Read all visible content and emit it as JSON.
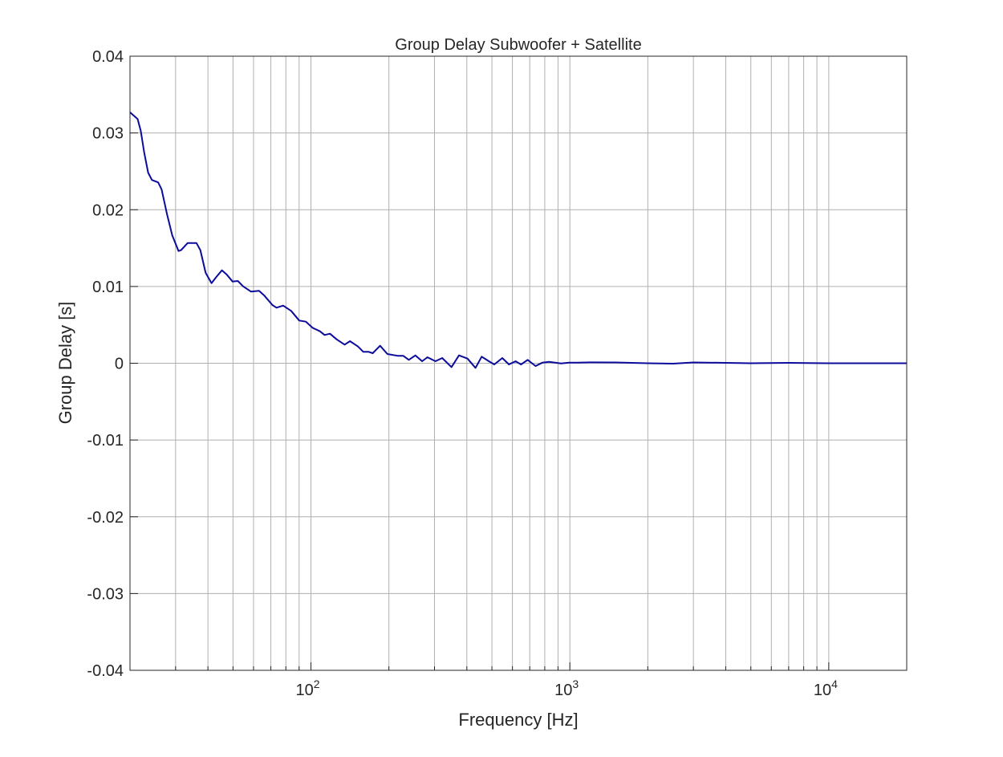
{
  "chart_data": {
    "type": "line",
    "title": "Group Delay Subwoofer + Satellite",
    "xlabel": "Frequency [Hz]",
    "ylabel": "Group Delay [s]",
    "xscale": "log",
    "xlim": [
      20,
      20000
    ],
    "ylim": [
      -0.04,
      0.04
    ],
    "grid": true,
    "minor_grid": true,
    "x_tick_labels": [
      {
        "value": 100,
        "base": "10",
        "exp": "2"
      },
      {
        "value": 1000,
        "base": "10",
        "exp": "3"
      },
      {
        "value": 10000,
        "base": "10",
        "exp": "4"
      }
    ],
    "y_ticks": [
      -0.04,
      -0.03,
      -0.02,
      -0.01,
      0,
      0.01,
      0.02,
      0.03,
      0.04
    ],
    "y_tick_labels": [
      "-0.04",
      "-0.03",
      "-0.02",
      "-0.01",
      "0",
      "0.01",
      "0.02",
      "0.03",
      "0.04"
    ],
    "line_color": "#0b0b9c",
    "series": [
      {
        "x": [
          20,
          21.4,
          22.0,
          22.7,
          23.5,
          24.3,
          25.7,
          26.5,
          27.8,
          29.1,
          30.8,
          31.5,
          33.4,
          36.1,
          37.4,
          39.2,
          41.3,
          43.1,
          45.3,
          47.2,
          49.8,
          52.2,
          54.7,
          58.7,
          63.0,
          66.1,
          71.0,
          73.6,
          78.1,
          83.9,
          90.1,
          95.6,
          101.4,
          103.8,
          108.4,
          112.9,
          118.4,
          125.6,
          134.9,
          141.5,
          152,
          159.3,
          167.1,
          173.2,
          185,
          197.3,
          217,
          227.5,
          238.7,
          253.2,
          268.9,
          281.8,
          302.6,
          321.3,
          349,
          373.1,
          402.4,
          432.2,
          456.5,
          486.8,
          510.5,
          548.3,
          581.8,
          617.2,
          647.4,
          686.9,
          737.4,
          783.2,
          831.2,
          924.6,
          993,
          1066,
          1200,
          1500,
          2000,
          2500,
          3000,
          4000,
          5000,
          7000,
          10000,
          15000,
          20000
        ],
        "y": [
          0.03269,
          0.03182,
          0.03028,
          0.02746,
          0.02484,
          0.02387,
          0.02356,
          0.02265,
          0.01944,
          0.01668,
          0.01462,
          0.01473,
          0.01567,
          0.01567,
          0.01473,
          0.01177,
          0.01044,
          0.01124,
          0.01211,
          0.01159,
          0.01065,
          0.01072,
          0.01002,
          0.00933,
          0.00944,
          0.00881,
          0.00758,
          0.00724,
          0.00751,
          0.00682,
          0.00556,
          0.00542,
          0.00462,
          0.00445,
          0.00416,
          0.00368,
          0.00385,
          0.00312,
          0.00243,
          0.00288,
          0.00218,
          0.00149,
          0.00149,
          0.00131,
          0.00228,
          0.0012,
          0.00096,
          0.00096,
          0.00044,
          0.00103,
          0.00026,
          0.00078,
          0.00026,
          0.00068,
          -0.0005,
          0.00103,
          0.00061,
          -0.00061,
          0.00086,
          0.00026,
          -0.00016,
          0.00068,
          -0.00016,
          0.00026,
          -0.00016,
          0.00044,
          -0.00037,
          8e-05,
          0.00019,
          -2e-05,
          8e-05,
          8e-05,
          0.00012,
          0.0001,
          0.0,
          -5e-05,
          0.0001,
          5e-05,
          0.0,
          5e-05,
          0.0,
          0.0,
          0.0
        ]
      }
    ]
  }
}
